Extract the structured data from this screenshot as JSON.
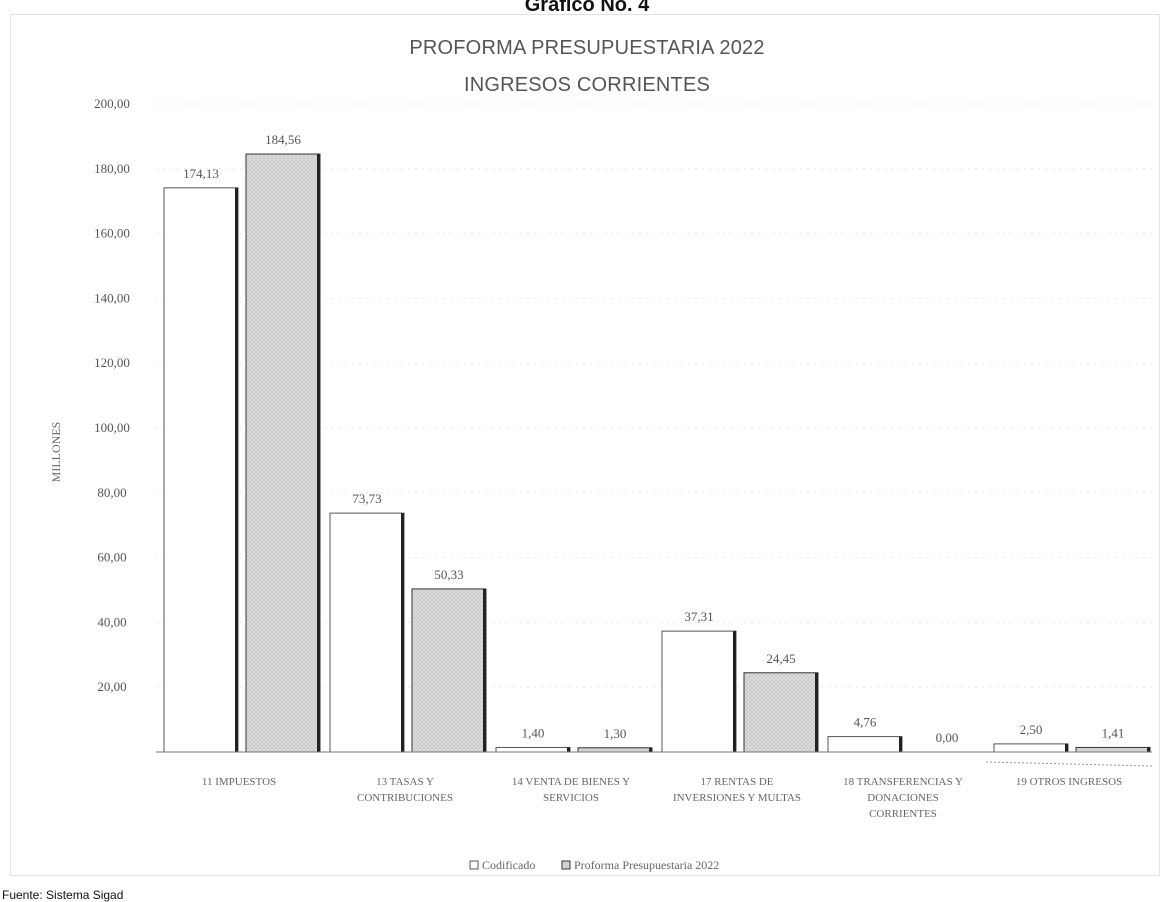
{
  "page": {
    "graph_heading": "Grafico No. 4",
    "source_note": "Fuente: Sistema Sigad"
  },
  "chart_data": {
    "type": "bar",
    "title": "PROFORMA PRESUPUESTARIA 2022",
    "subtitle": "INGRESOS CORRIENTES",
    "xlabel": "",
    "ylabel": "MILLONES",
    "ylim": [
      0,
      200
    ],
    "yticks": [
      "",
      "20,00",
      "40,00",
      "60,00",
      "80,00",
      "100,00",
      "120,00",
      "140,00",
      "160,00",
      "180,00",
      "200,00"
    ],
    "grid": true,
    "legend_position": "bottom",
    "categories": [
      [
        "11 IMPUESTOS"
      ],
      [
        "13 TASAS Y",
        "CONTRIBUCIONES"
      ],
      [
        "14 VENTA DE BIENES Y",
        "SERVICIOS"
      ],
      [
        "17 RENTAS DE",
        "INVERSIONES Y MULTAS"
      ],
      [
        "18 TRANSFERENCIAS Y",
        "DONACIONES",
        "CORRIENTES"
      ],
      [
        "19 OTROS INGRESOS"
      ]
    ],
    "series": [
      {
        "name": "Codificado",
        "values": [
          174.13,
          73.73,
          1.4,
          37.31,
          4.76,
          2.5
        ],
        "labels": [
          "174,13",
          "73,73",
          "1,40",
          "37,31",
          "4,76",
          "2,50"
        ],
        "color": "#ffffff",
        "stroke": "#555555"
      },
      {
        "name": "Proforma Presupuestaria 2022",
        "values": [
          184.56,
          50.33,
          1.3,
          24.45,
          0.0,
          1.41
        ],
        "labels": [
          "184,56",
          "50,33",
          "1,30",
          "24,45",
          "0,00",
          "1,41"
        ],
        "color": "#dcdcdc",
        "stroke": "#333333"
      }
    ]
  }
}
